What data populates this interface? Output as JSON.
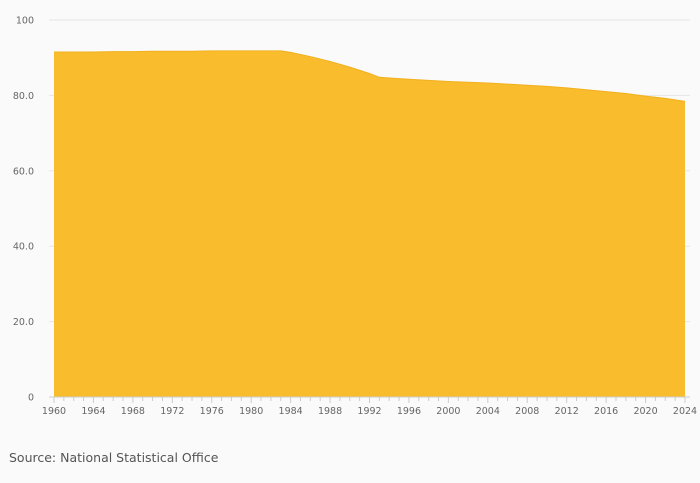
{
  "source_text": "Source: National Statistical Office",
  "colors": {
    "area_fill": "#f8bc2d",
    "area_stroke": "#f2b01e",
    "grid": "#e6e6e6",
    "axis": "#cccccc",
    "text": "#666666"
  },
  "chart_data": {
    "type": "area",
    "title": "",
    "xlabel": "",
    "ylabel": "",
    "xlim": [
      1960,
      2024
    ],
    "ylim": [
      0,
      100
    ],
    "x_ticks": [
      "1960",
      "1964",
      "1968",
      "1972",
      "1976",
      "1980",
      "1984",
      "1988",
      "1992",
      "1996",
      "2000",
      "2004",
      "2008",
      "2012",
      "2016",
      "2020",
      "2024"
    ],
    "y_ticks": [
      "0",
      "20.0",
      "40.0",
      "60.0",
      "80.0",
      "100"
    ],
    "grid": true,
    "x": [
      1960,
      1962,
      1964,
      1966,
      1968,
      1970,
      1972,
      1974,
      1976,
      1978,
      1980,
      1982,
      1983,
      1984,
      1986,
      1988,
      1990,
      1992,
      1993,
      1994,
      1996,
      1998,
      2000,
      2002,
      2004,
      2006,
      2008,
      2010,
      2012,
      2014,
      2016,
      2018,
      2020,
      2022,
      2024
    ],
    "values": [
      91.5,
      91.5,
      91.5,
      91.6,
      91.6,
      91.7,
      91.7,
      91.7,
      91.8,
      91.8,
      91.8,
      91.8,
      91.8,
      91.4,
      90.3,
      89.0,
      87.5,
      85.8,
      84.8,
      84.6,
      84.3,
      84.0,
      83.7,
      83.5,
      83.3,
      83.0,
      82.7,
      82.4,
      82.0,
      81.5,
      81.0,
      80.5,
      79.8,
      79.2,
      78.4
    ]
  }
}
